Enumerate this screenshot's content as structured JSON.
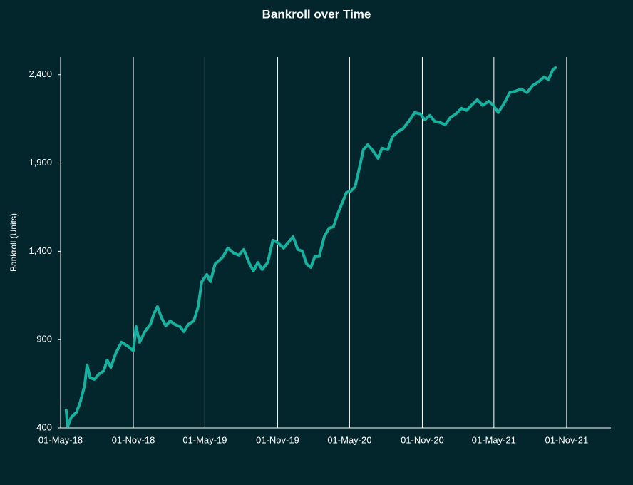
{
  "chart_data": {
    "type": "line",
    "title": "Bankroll over Time",
    "y_label": "Bankroll  (Units)",
    "color": "#17b1a0",
    "grid": true,
    "x": [
      "2018-05-15",
      "2018-05-19",
      "2018-05-28",
      "2018-06-10",
      "2018-06-19",
      "2018-07-01",
      "2018-07-07",
      "2018-07-15",
      "2018-07-26",
      "2018-08-05",
      "2018-08-18",
      "2018-08-27",
      "2018-09-05",
      "2018-09-18",
      "2018-10-02",
      "2018-10-17",
      "2018-11-01",
      "2018-11-08",
      "2018-11-17",
      "2018-11-30",
      "2018-12-14",
      "2018-12-23",
      "2019-01-01",
      "2019-01-11",
      "2019-01-22",
      "2019-02-02",
      "2019-02-14",
      "2019-02-27",
      "2019-03-09",
      "2019-03-20",
      "2019-04-03",
      "2019-04-14",
      "2019-04-23",
      "2019-05-06",
      "2019-05-15",
      "2019-05-27",
      "2019-06-07",
      "2019-06-16",
      "2019-06-28",
      "2019-07-13",
      "2019-07-26",
      "2019-08-07",
      "2019-08-22",
      "2019-09-01",
      "2019-09-12",
      "2019-09-23",
      "2019-10-07",
      "2019-10-20",
      "2019-11-01",
      "2019-11-16",
      "2019-11-28",
      "2019-12-10",
      "2019-12-22",
      "2020-01-02",
      "2020-01-13",
      "2020-01-24",
      "2020-02-03",
      "2020-02-14",
      "2020-02-27",
      "2020-03-10",
      "2020-03-21",
      "2020-04-01",
      "2020-04-12",
      "2020-04-23",
      "2020-05-04",
      "2020-05-15",
      "2020-05-26",
      "2020-06-05",
      "2020-06-16",
      "2020-06-27",
      "2020-07-12",
      "2020-07-22",
      "2020-08-06",
      "2020-08-17",
      "2020-08-31",
      "2020-09-14",
      "2020-09-28",
      "2020-10-13",
      "2020-10-27",
      "2020-11-07",
      "2020-11-20",
      "2020-12-02",
      "2020-12-17",
      "2020-12-29",
      "2021-01-11",
      "2021-01-25",
      "2021-02-08",
      "2021-02-21",
      "2021-03-05",
      "2021-03-20",
      "2021-04-03",
      "2021-04-18",
      "2021-04-30",
      "2021-05-12",
      "2021-05-27",
      "2021-06-10",
      "2021-06-25",
      "2021-07-09",
      "2021-07-24",
      "2021-08-07",
      "2021-08-22",
      "2021-09-05",
      "2021-09-16",
      "2021-09-27",
      "2021-10-04"
    ],
    "values": [
      501,
      408,
      461,
      489,
      541,
      642,
      756,
      683,
      675,
      703,
      723,
      784,
      743,
      824,
      885,
      865,
      836,
      974,
      885,
      945,
      986,
      1046,
      1087,
      1026,
      978,
      1006,
      986,
      974,
      945,
      986,
      1006,
      1087,
      1228,
      1269,
      1228,
      1329,
      1349,
      1370,
      1418,
      1390,
      1378,
      1410,
      1329,
      1289,
      1337,
      1297,
      1337,
      1463,
      1450,
      1418,
      1450,
      1483,
      1410,
      1402,
      1329,
      1309,
      1370,
      1370,
      1483,
      1531,
      1539,
      1612,
      1673,
      1733,
      1741,
      1766,
      1875,
      1976,
      2004,
      1976,
      1927,
      1984,
      1976,
      2048,
      2077,
      2097,
      2137,
      2186,
      2178,
      2145,
      2170,
      2137,
      2129,
      2117,
      2158,
      2178,
      2210,
      2198,
      2226,
      2258,
      2226,
      2250,
      2226,
      2186,
      2238,
      2299,
      2307,
      2319,
      2299,
      2339,
      2360,
      2388,
      2372,
      2428,
      2440
    ],
    "xlim": [
      "2018-05-01",
      "2022-02-21"
    ],
    "xticks": [
      {
        "value": "2018-05-01",
        "label": "01-May-18"
      },
      {
        "value": "2018-11-01",
        "label": "01-Nov-18"
      },
      {
        "value": "2019-05-01",
        "label": "01-May-19"
      },
      {
        "value": "2019-11-01",
        "label": "01-Nov-19"
      },
      {
        "value": "2020-05-01",
        "label": "01-May-20"
      },
      {
        "value": "2020-11-01",
        "label": "01-Nov-20"
      },
      {
        "value": "2021-05-01",
        "label": "01-May-21"
      },
      {
        "value": "2021-11-01",
        "label": "01-Nov-21"
      }
    ],
    "ylim": [
      400,
      2500
    ],
    "yticks": [
      400,
      900,
      {
        "value": 1400,
        "label": "1,400"
      },
      {
        "value": 1900,
        "label": "1,900"
      },
      {
        "value": 2400,
        "label": "2,400"
      }
    ]
  }
}
